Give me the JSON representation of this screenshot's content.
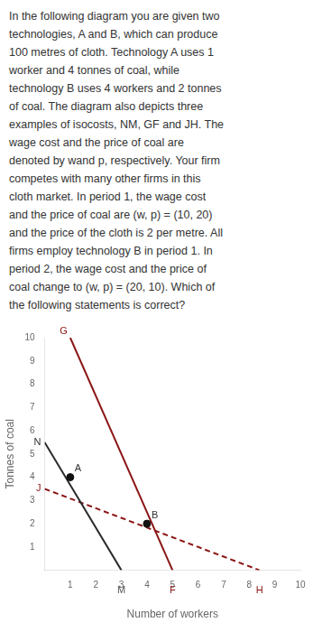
{
  "chart_data": {
    "type": "line",
    "text": [
      "In the following diagram you are given two",
      "technologies, A and B, which can produce",
      "100 metres of cloth. Technology A uses 1",
      "worker and 4 tonnes of coal, while",
      "technology B uses 4 workers and 2 tonnes",
      "of coal. The diagram also depicts three",
      "examples of isocosts, NM, GF and JH. The",
      "wage cost and the price of coal are",
      "denoted by wand p, respectively. Your firm",
      "competes with many other firms in this",
      "cloth market. In period 1, the wage cost",
      "and the price of coal are (w, p) = (10, 20)",
      "and the price of the cloth is 2 per metre. All",
      "firms employ technology B in period 1. In",
      "period 2, the wage cost and the price of",
      "coal change to (w, p) = (20, 10). Which of",
      "the following statements is correct?"
    ],
    "xlabel": "Number of workers",
    "ylabel": "Tonnes of coal",
    "xlim": [
      0,
      10
    ],
    "ylim": [
      0,
      10
    ],
    "xticks": [
      1,
      2,
      3,
      4,
      5,
      6,
      7,
      8,
      9,
      10
    ],
    "yticks": [
      1,
      2,
      3,
      4,
      5,
      6,
      7,
      8,
      9,
      10
    ],
    "grid": false,
    "series": [
      {
        "type": "line",
        "x": [
          0,
          3
        ],
        "values": [
          5.5,
          0
        ],
        "color": "#2a2a2a",
        "line_style": "solid"
      },
      {
        "type": "line",
        "x": [
          1,
          5
        ],
        "values": [
          10,
          0
        ],
        "color": "#8b1515",
        "line_style": "solid"
      },
      {
        "type": "line",
        "x": [
          0,
          8.4
        ],
        "values": [
          3.5,
          0
        ],
        "color": "#8b1515",
        "line_style": "dashed"
      },
      {
        "type": "scatter",
        "x": [
          1,
          4
        ],
        "values": [
          4,
          2
        ],
        "color": "#111111",
        "marker": "circle"
      }
    ],
    "annotations": [
      {
        "text": "A",
        "x": 1,
        "y": 4,
        "color": "#333333"
      },
      {
        "text": "B",
        "x": 4,
        "y": 2,
        "color": "#333333"
      },
      {
        "text": "N",
        "x": 0,
        "y": 5.5,
        "color": "#333333"
      },
      {
        "text": "M",
        "x": 3,
        "y": 0,
        "color": "#555555"
      },
      {
        "text": "G",
        "x": 1,
        "y": 10,
        "color": "#8b1515"
      },
      {
        "text": "F",
        "x": 5,
        "y": 0,
        "color": "#8b1515"
      },
      {
        "text": "J",
        "x": 0,
        "y": 3.5,
        "color": "#8b1515"
      },
      {
        "text": "H",
        "x": 8.4,
        "y": 0,
        "color": "#8b1515"
      }
    ]
  }
}
